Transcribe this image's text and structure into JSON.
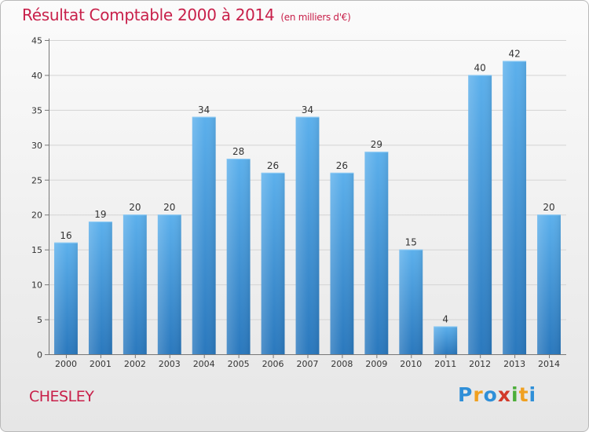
{
  "chart_data": {
    "type": "bar",
    "title": "Résultat Comptable 2000 à 2014",
    "subtitle": "(en milliers d'€)",
    "categories": [
      "2000",
      "2001",
      "2002",
      "2003",
      "2004",
      "2005",
      "2006",
      "2007",
      "2008",
      "2009",
      "2010",
      "2011",
      "2012",
      "2013",
      "2014"
    ],
    "values": [
      16,
      19,
      20,
      20,
      34,
      28,
      26,
      34,
      26,
      29,
      15,
      4,
      40,
      42,
      20
    ],
    "ylim": [
      0,
      45
    ],
    "yticks": [
      0,
      5,
      10,
      15,
      20,
      25,
      30,
      35,
      40,
      45
    ],
    "xlabel": "",
    "ylabel": "",
    "grid": true,
    "bar_color": "#3b8fd4"
  },
  "commune": "CHESLEY",
  "logo": {
    "letters": [
      "P",
      "r",
      "o",
      "x",
      "i",
      "t",
      "i"
    ],
    "colors": [
      "#2f8fd8",
      "#f0a020",
      "#2f8fd8",
      "#d23a2a",
      "#4cae3a",
      "#f0a020",
      "#2f8fd8"
    ]
  }
}
